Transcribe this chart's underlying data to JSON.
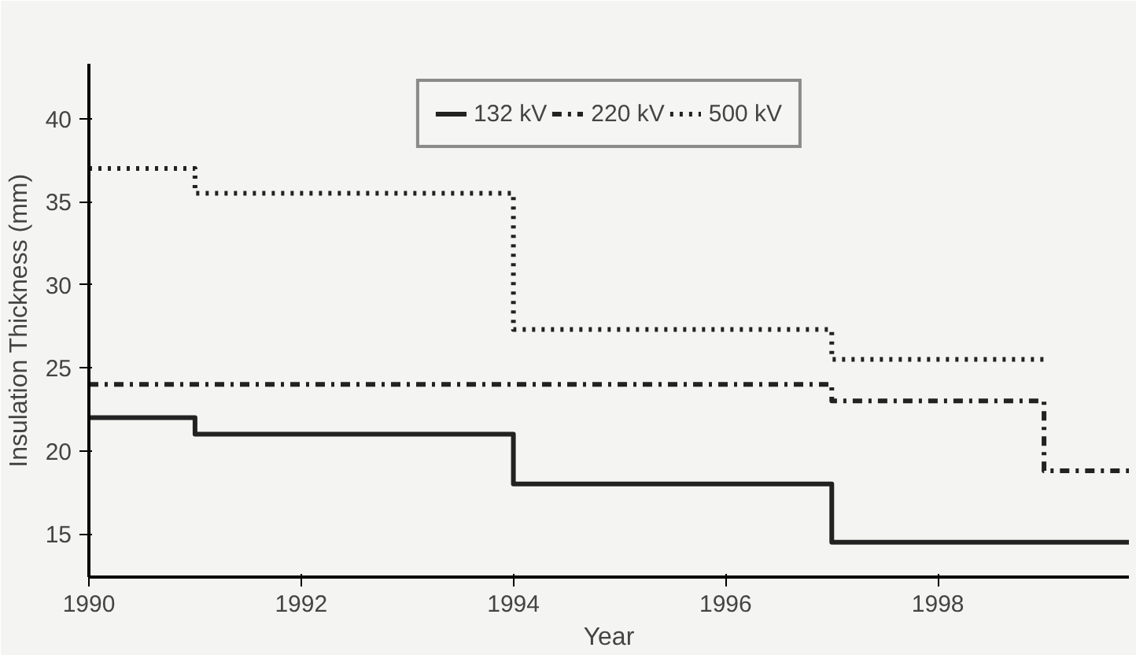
{
  "chart_data": {
    "type": "step",
    "xlabel": "Year",
    "ylabel": "Insulation Thickness (mm)",
    "xlim": [
      1990,
      1999.8
    ],
    "ylim": [
      12.4,
      43.3
    ],
    "xticks": [
      1990,
      1992,
      1994,
      1996,
      1998
    ],
    "yticks": [
      15,
      20,
      25,
      30,
      35,
      40
    ],
    "grid": false,
    "legend": "top",
    "marker": "none",
    "series": [
      {
        "name": "132 kV",
        "color": "#222222",
        "line_style": "solid",
        "x": [
          1990,
          1991,
          1994,
          1997,
          1999.8
        ],
        "values": [
          22,
          21,
          18,
          14.5,
          14.5
        ]
      },
      {
        "name": "220 kV",
        "color": "#222222",
        "line_style": "dashdot",
        "x": [
          1990,
          1997,
          1999,
          1999.8
        ],
        "values": [
          24,
          23,
          18.8,
          18.8
        ]
      },
      {
        "name": "500 kV",
        "color": "#222222",
        "line_style": "dotted",
        "x": [
          1990,
          1991,
          1994,
          1997,
          1999
        ],
        "values": [
          37,
          35.5,
          27.3,
          25.5,
          25.5
        ]
      }
    ]
  }
}
